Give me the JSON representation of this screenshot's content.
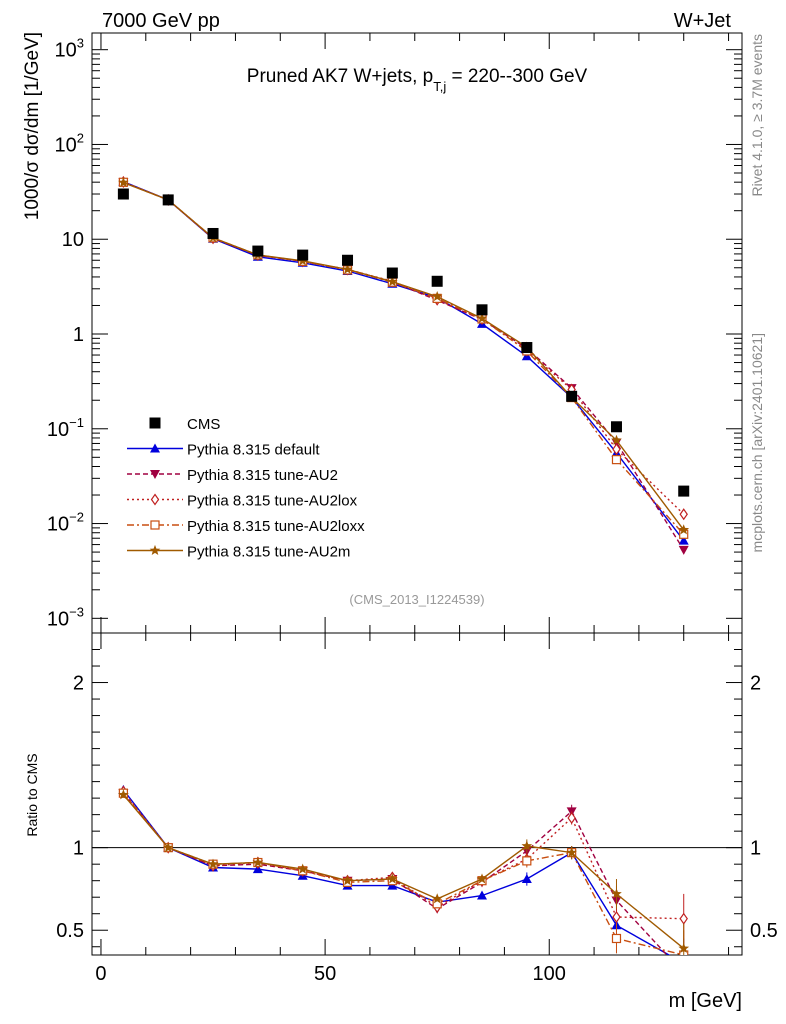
{
  "header": {
    "left": "7000 GeV pp",
    "right": "W+Jet"
  },
  "side": {
    "top": "Rivet 4.1.0, ≥ 3.7M events",
    "bottom": "mcplots.cern.ch [arXiv:2401.10621]"
  },
  "chart_data": {
    "type": "line",
    "title": "Pruned AK7 W+jets, p_T,j = 220--300 GeV",
    "title_main": "Pruned AK7 W+jets, p",
    "title_sub": "T,j",
    "title_tail": " = 220--300 GeV",
    "analysis": "(CMS_2013_I1224539)",
    "xlabel": "m [GeV]",
    "ylabel": "1000/σ  dσ/dm [1/GeV]",
    "ratio_ylabel": "Ratio to CMS",
    "xlim": [
      -2,
      143
    ],
    "ylim": [
      0.0007,
      1500
    ],
    "ratio_ylim": [
      0.35,
      2.3
    ],
    "x_ticks": [
      0,
      50,
      100
    ],
    "x_tick_labels": [
      "0",
      "50",
      "100"
    ],
    "y_ticks": [
      {
        "v": 0.001,
        "base": "10",
        "exp": "−3"
      },
      {
        "v": 0.01,
        "base": "10",
        "exp": "−2"
      },
      {
        "v": 0.1,
        "base": "10",
        "exp": "−1"
      },
      {
        "v": 1,
        "base": "1",
        "exp": ""
      },
      {
        "v": 10,
        "base": "10",
        "exp": ""
      },
      {
        "v": 100,
        "base": "10",
        "exp": "2"
      },
      {
        "v": 1000,
        "base": "10",
        "exp": "3"
      }
    ],
    "ratio_ticks": [
      {
        "v": 0.5,
        "label": "0.5"
      },
      {
        "v": 1,
        "label": "1"
      },
      {
        "v": 2,
        "label": "2"
      }
    ],
    "x": [
      5,
      15,
      25,
      35,
      45,
      55,
      65,
      75,
      85,
      95,
      105,
      115,
      130
    ],
    "data": {
      "name": "CMS",
      "values": [
        30,
        26,
        11.5,
        7.5,
        6.8,
        6.0,
        4.4,
        3.6,
        1.8,
        0.72,
        0.22,
        0.105,
        0.022
      ]
    },
    "series": [
      {
        "name": "Pythia 8.315 default",
        "color": "#0000dd",
        "marker": "triangle-up",
        "dash": "",
        "ratio": [
          1.35,
          1.0,
          0.88,
          0.87,
          0.83,
          0.77,
          0.77,
          0.67,
          0.71,
          0.81,
          0.97,
          0.53,
          0.3
        ]
      },
      {
        "name": "Pythia 8.315 tune-AU2",
        "color": "#a00040",
        "marker": "triangle-down",
        "dash": "5,3",
        "ratio": [
          1.33,
          1.0,
          0.89,
          0.9,
          0.86,
          0.8,
          0.81,
          0.63,
          0.79,
          0.98,
          1.22,
          0.68,
          0.24
        ]
      },
      {
        "name": "Pythia 8.315 tune-AU2lox",
        "color": "#c02020",
        "marker": "diamond",
        "dash": "2,3",
        "ratio": [
          1.34,
          1.0,
          0.89,
          0.91,
          0.86,
          0.8,
          0.82,
          0.64,
          0.8,
          0.93,
          1.18,
          0.58,
          0.57
        ]
      },
      {
        "name": "Pythia 8.315 tune-AU2loxx",
        "color": "#c84e10",
        "marker": "square",
        "dash": "7,3,2,3",
        "ratio": [
          1.33,
          1.0,
          0.9,
          0.91,
          0.86,
          0.79,
          0.8,
          0.66,
          0.8,
          0.92,
          0.97,
          0.45,
          0.35
        ]
      },
      {
        "name": "Pythia 8.315 tune-AU2m",
        "color": "#a05a00",
        "marker": "star",
        "dash": "",
        "ratio": [
          1.32,
          1.0,
          0.9,
          0.91,
          0.87,
          0.8,
          0.81,
          0.69,
          0.81,
          1.01,
          0.97,
          0.72,
          0.39
        ]
      }
    ],
    "legend": [
      {
        "name": "CMS",
        "marker": "square-filled",
        "color": "#000000"
      },
      {
        "name": "Pythia 8.315 default"
      },
      {
        "name": "Pythia 8.315 tune-AU2"
      },
      {
        "name": "Pythia 8.315 tune-AU2lox"
      },
      {
        "name": "Pythia 8.315 tune-AU2loxx"
      },
      {
        "name": "Pythia 8.315 tune-AU2m"
      }
    ],
    "legend_placement": "bottom-left"
  }
}
